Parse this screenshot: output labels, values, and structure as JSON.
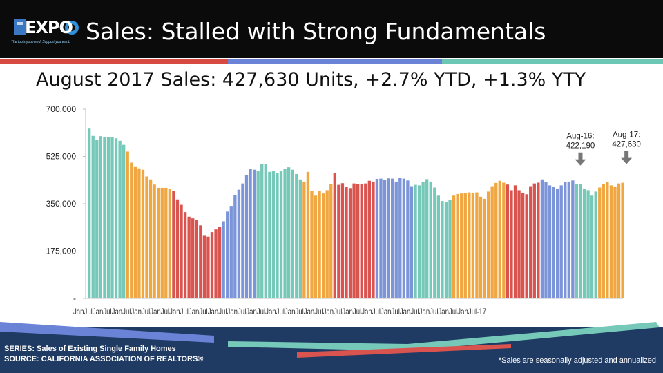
{
  "header": {
    "logo_text": "EXPO",
    "logo_tagline": "The tools you need. Support you want.",
    "title": "Sales: Stalled with Strong Fundamentals"
  },
  "subtitle": "August 2017 Sales: 427,630 Units, +2.7% YTD, +1.3% YTY",
  "footer": {
    "series": "SERIES: Sales of Existing Single Family Homes",
    "source": "SOURCE:  CALIFORNIA ASSOCIATION OF REALTORS®",
    "note": "*Sales are seasonally adjusted and annualized"
  },
  "colors": {
    "teal": "#76c9b9",
    "orange": "#f0a742",
    "red": "#d9534f",
    "blue": "#7b95d8",
    "stripe_red": "#d64a41",
    "stripe_blue": "#6b83d6",
    "stripe_teal": "#6cc7b5",
    "footer_navy": "#1f3b63"
  },
  "chart_data": {
    "type": "bar",
    "ylim": [
      0,
      700000
    ],
    "yticks": [
      "700,000",
      "525,000",
      "350,000",
      "175,000",
      "-"
    ],
    "ytick_values": [
      700000,
      525000,
      350000,
      175000,
      0
    ],
    "x_label_text": "JanJulJanJulJanJulJanJulJanJulJanJulJanJulJanJulJanJulJanJulJanJulJanJulJanJulJanJulJanJulJanJulJanJulJanJulJanJulJanJulJanJul-17",
    "annotations": [
      {
        "label": "Aug-16:",
        "value_text": "422,190",
        "value": 422190
      },
      {
        "label": "Aug-17:",
        "value_text": "427,630",
        "value": 427630
      }
    ],
    "annotation_indices": [
      128,
      140
    ],
    "values": [
      628000,
      601000,
      587000,
      600000,
      597000,
      596000,
      596000,
      592000,
      583000,
      568000,
      543000,
      502000,
      486000,
      481000,
      476000,
      451000,
      440000,
      421000,
      409000,
      409000,
      409000,
      406000,
      396000,
      366000,
      346000,
      319000,
      302000,
      296000,
      290000,
      270000,
      234000,
      228000,
      245000,
      255000,
      265000,
      285000,
      321000,
      342000,
      383000,
      402000,
      425000,
      456000,
      478000,
      476000,
      470000,
      496000,
      496000,
      468000,
      470000,
      465000,
      470000,
      479000,
      485000,
      476000,
      460000,
      440000,
      432000,
      468000,
      397000,
      380000,
      397000,
      388000,
      400000,
      423000,
      463000,
      420000,
      426000,
      413000,
      408000,
      425000,
      422000,
      422000,
      425000,
      435000,
      432000,
      442000,
      443000,
      438000,
      444000,
      443000,
      432000,
      447000,
      443000,
      436000,
      415000,
      420000,
      418000,
      430000,
      441000,
      432000,
      410000,
      380000,
      360000,
      355000,
      363000,
      380000,
      386000,
      388000,
      390000,
      392000,
      391000,
      392000,
      376000,
      368000,
      395000,
      415000,
      427000,
      435000,
      428000,
      421000,
      400000,
      418000,
      400000,
      391000,
      385000,
      415000,
      425000,
      428000,
      440000,
      430000,
      418000,
      412000,
      405000,
      418000,
      430000,
      432000,
      436000,
      423000,
      422190,
      405000,
      400000,
      380000,
      395000,
      410000,
      422000,
      430000,
      418000,
      414000,
      425000,
      427630
    ],
    "color_runs": [
      [
        0,
        10,
        "teal"
      ],
      [
        10,
        22,
        "orange"
      ],
      [
        22,
        35,
        "red"
      ],
      [
        35,
        44,
        "blue"
      ],
      [
        44,
        56,
        "teal"
      ],
      [
        56,
        64,
        "orange"
      ],
      [
        64,
        75,
        "red"
      ],
      [
        75,
        85,
        "blue"
      ],
      [
        85,
        95,
        "teal"
      ],
      [
        95,
        109,
        "orange"
      ],
      [
        109,
        118,
        "red"
      ],
      [
        118,
        127,
        "blue"
      ],
      [
        127,
        133,
        "teal"
      ],
      [
        133,
        141,
        "orange"
      ]
    ]
  }
}
